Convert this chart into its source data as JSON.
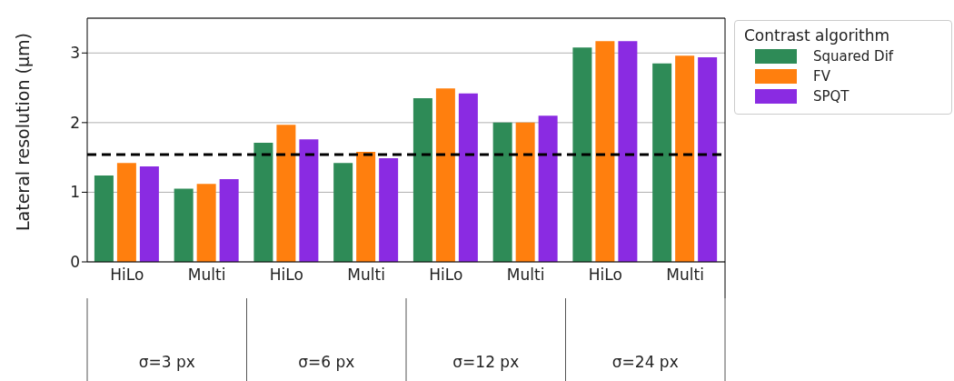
{
  "chart_data": {
    "type": "bar",
    "ylabel": "Lateral resolution (µm)",
    "legend_title": "Contrast algorithm",
    "categories": [
      "HiLo",
      "Multi",
      "HiLo",
      "Multi",
      "HiLo",
      "Multi",
      "HiLo",
      "Multi"
    ],
    "series": [
      {
        "name": "Squared Dif",
        "color": "#2e8b57",
        "values": [
          1.24,
          1.05,
          1.71,
          1.42,
          2.35,
          2.0,
          3.08,
          2.85
        ]
      },
      {
        "name": "FV",
        "color": "#ff7f0e",
        "values": [
          1.42,
          1.12,
          1.97,
          1.58,
          2.49,
          2.0,
          3.17,
          2.96
        ]
      },
      {
        "name": "SPQT",
        "color": "#8a2be2",
        "values": [
          1.37,
          1.19,
          1.76,
          1.49,
          2.42,
          2.1,
          3.17,
          2.94
        ]
      }
    ],
    "ylim": [
      0,
      3.5
    ],
    "yticks": [
      0,
      1,
      2,
      3
    ],
    "grid": "y",
    "legend": "top right",
    "ref_lines": [
      {
        "axis": "y",
        "value": 1.54,
        "color": "#000000",
        "line_style": "dashed"
      }
    ],
    "annotations": [
      "σ=3 px",
      "σ=6 px",
      "σ=12 px",
      "σ=24 px"
    ]
  }
}
